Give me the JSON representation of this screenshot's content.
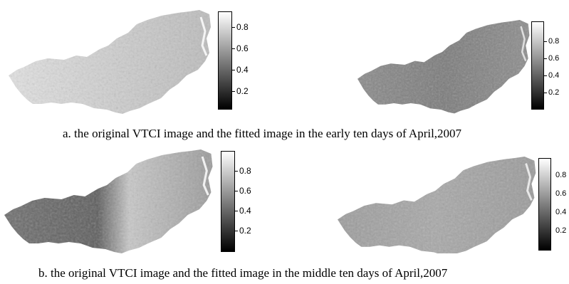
{
  "colorbar": {
    "ticks": [
      "0.8",
      "0.6",
      "0.4",
      "0.2"
    ]
  },
  "captions": {
    "a": "a. the original VTCI image and the fitted image in the early ten days of April,2007",
    "b": "b. the original VTCI image and the fitted image in the middle ten days of April,2007"
  },
  "panels": [
    {
      "id": "a-original",
      "tone": "light"
    },
    {
      "id": "a-fitted",
      "tone": "mid"
    },
    {
      "id": "b-original",
      "tone": "dark"
    },
    {
      "id": "b-fitted",
      "tone": "speckled"
    }
  ]
}
